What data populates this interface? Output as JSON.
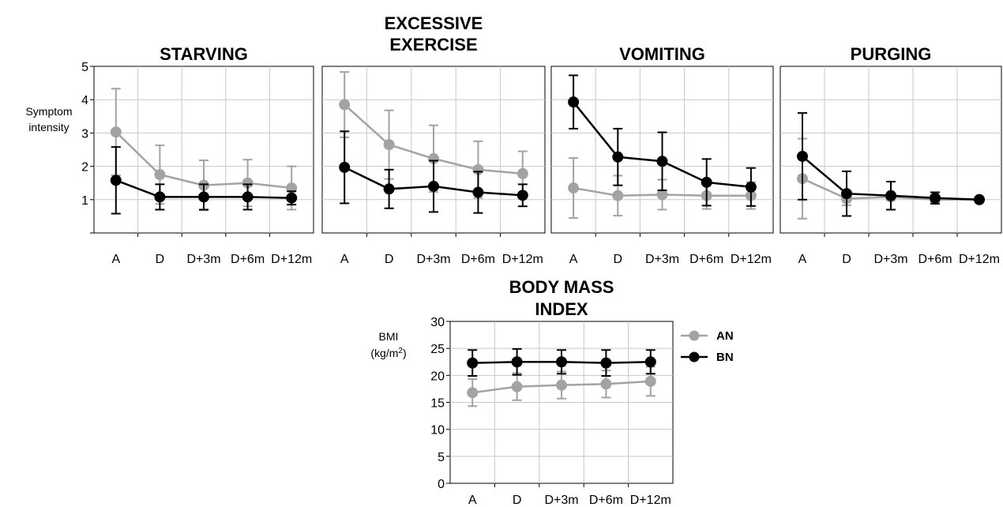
{
  "colors": {
    "AN": "#a3a3a3",
    "BN": "#000000",
    "grid": "#c8c8c8",
    "frame": "#000000"
  },
  "chart_data": [
    {
      "type": "line",
      "title_lines": [
        "STARVING"
      ],
      "ylabel_lines": [
        "Symptom",
        "intensity"
      ],
      "categories": [
        "A",
        "D",
        "D+3m",
        "D+6m",
        "D+12m"
      ],
      "ylim": [
        0,
        5
      ],
      "yticks": [
        1,
        2,
        3,
        4,
        5
      ],
      "series": [
        {
          "name": "AN",
          "values": [
            3.03,
            1.75,
            1.43,
            1.5,
            1.35
          ],
          "errors": [
            1.3,
            0.88,
            0.75,
            0.7,
            0.65
          ]
        },
        {
          "name": "BN",
          "values": [
            1.58,
            1.08,
            1.08,
            1.08,
            1.05
          ],
          "errors": [
            1.0,
            0.38,
            0.38,
            0.38,
            0.2
          ]
        }
      ]
    },
    {
      "type": "line",
      "title_lines": [
        "EXCESSIVE",
        "EXERCISE"
      ],
      "categories": [
        "A",
        "D",
        "D+3m",
        "D+6m",
        "D+12m"
      ],
      "ylim": [
        0,
        5
      ],
      "series": [
        {
          "name": "AN",
          "values": [
            3.85,
            2.65,
            2.23,
            1.9,
            1.78
          ],
          "errors": [
            0.98,
            1.03,
            1.0,
            0.85,
            0.67
          ]
        },
        {
          "name": "BN",
          "values": [
            1.97,
            1.32,
            1.4,
            1.22,
            1.13
          ],
          "errors": [
            1.08,
            0.58,
            0.77,
            0.62,
            0.33
          ]
        }
      ]
    },
    {
      "type": "line",
      "title_lines": [
        "VOMITING"
      ],
      "categories": [
        "A",
        "D",
        "D+3m",
        "D+6m",
        "D+12m"
      ],
      "ylim": [
        0,
        5
      ],
      "series": [
        {
          "name": "AN",
          "values": [
            1.35,
            1.12,
            1.15,
            1.12,
            1.12
          ],
          "errors": [
            0.9,
            0.6,
            0.45,
            0.4,
            0.4
          ]
        },
        {
          "name": "BN",
          "values": [
            3.93,
            2.28,
            2.15,
            1.52,
            1.38
          ],
          "errors": [
            0.8,
            0.85,
            0.87,
            0.7,
            0.57
          ]
        }
      ]
    },
    {
      "type": "line",
      "title_lines": [
        "PURGING"
      ],
      "categories": [
        "A",
        "D",
        "D+3m",
        "D+6m",
        "D+12m"
      ],
      "ylim": [
        0,
        5
      ],
      "series": [
        {
          "name": "AN",
          "values": [
            1.63,
            1.03,
            1.08,
            1.0,
            1.0
          ],
          "errors": [
            1.2,
            0.2,
            0.1,
            0.08,
            0.05
          ]
        },
        {
          "name": "BN",
          "values": [
            2.3,
            1.18,
            1.12,
            1.05,
            1.0
          ],
          "errors": [
            1.3,
            0.67,
            0.42,
            0.17,
            0.07
          ]
        }
      ]
    },
    {
      "type": "line",
      "title_lines": [
        "BODY MASS",
        "INDEX"
      ],
      "ylabel_lines": [
        "BMI",
        "(kg/m",
        "2",
        ")"
      ],
      "categories": [
        "A",
        "D",
        "D+3m",
        "D+6m",
        "D+12m"
      ],
      "ylim": [
        0,
        30
      ],
      "yticks": [
        0,
        5,
        10,
        15,
        20,
        25,
        30
      ],
      "legend": {
        "position": "right",
        "entries": [
          "AN",
          "BN"
        ]
      },
      "series": [
        {
          "name": "AN",
          "values": [
            16.8,
            17.9,
            18.2,
            18.4,
            18.9
          ],
          "errors": [
            2.5,
            2.5,
            2.5,
            2.5,
            2.7
          ]
        },
        {
          "name": "BN",
          "values": [
            22.3,
            22.5,
            22.5,
            22.3,
            22.5
          ],
          "errors": [
            2.4,
            2.4,
            2.2,
            2.4,
            2.2
          ]
        }
      ]
    }
  ]
}
